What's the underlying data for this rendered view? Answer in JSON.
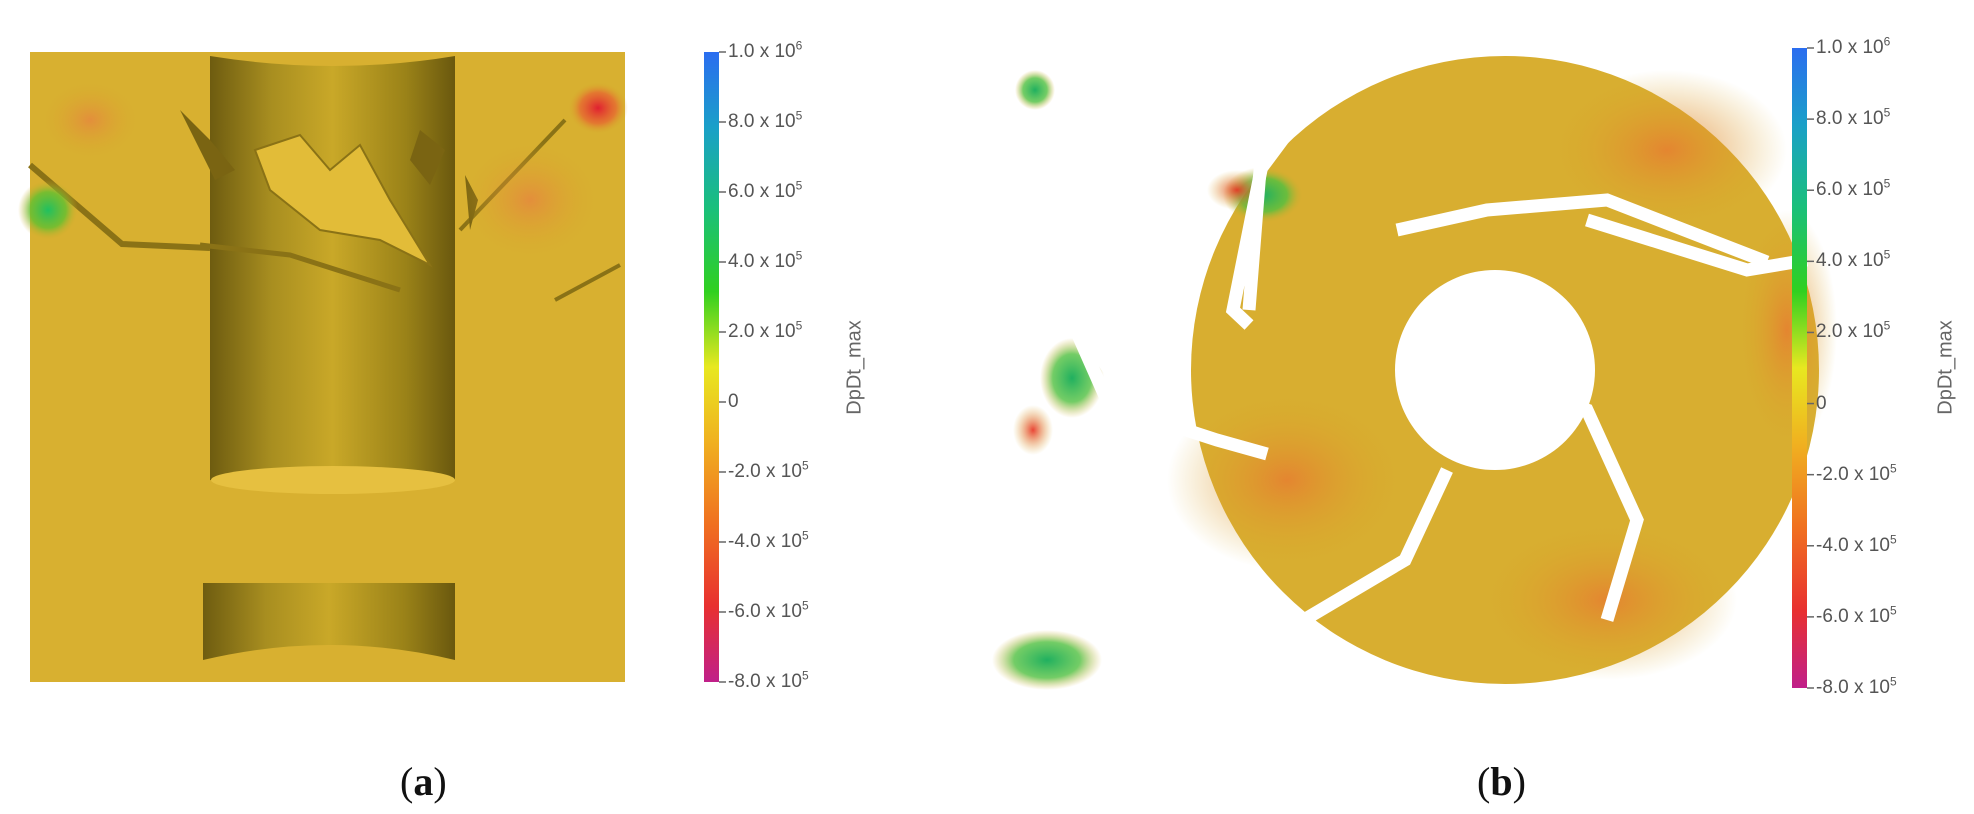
{
  "colorbar": {
    "title": "DpDt_max",
    "stops": [
      "#2b6df0",
      "#1aa0c8",
      "#1ac07a",
      "#30d020",
      "#e8e820",
      "#f0b020",
      "#f07020",
      "#e83030",
      "#c0208a"
    ],
    "ticks": [
      {
        "m": "1.0",
        "e": "6",
        "plain": false
      },
      {
        "m": "8.0",
        "e": "5",
        "plain": false
      },
      {
        "m": "6.0",
        "e": "5",
        "plain": false
      },
      {
        "m": "4.0",
        "e": "5",
        "plain": false
      },
      {
        "m": "2.0",
        "e": "5",
        "plain": false
      },
      {
        "m": "0",
        "e": "",
        "plain": true
      },
      {
        "m": "-2.0",
        "e": "5",
        "plain": false
      },
      {
        "m": "-4.0",
        "e": "5",
        "plain": false
      },
      {
        "m": "-6.0",
        "e": "5",
        "plain": false
      },
      {
        "m": "-8.0",
        "e": "5",
        "plain": false
      }
    ]
  },
  "panels": [
    {
      "caption_open": "(",
      "caption_letter": "a",
      "caption_close": ")"
    },
    {
      "caption_open": "(",
      "caption_letter": "b",
      "caption_close": ")"
    }
  ],
  "colors": {
    "field": "#d6ad2a",
    "field_light": "#dcb23a",
    "shadow": "#8a7216",
    "hot": "#e04020",
    "warm": "#e88030",
    "green": "#40c040",
    "blue": "#2a70e0"
  }
}
